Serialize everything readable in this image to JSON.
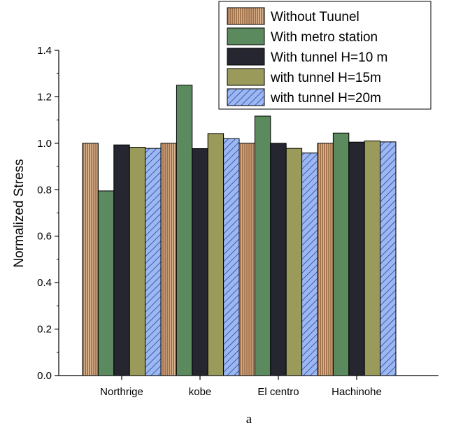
{
  "chart_data": {
    "type": "bar",
    "ylabel": "Normalized Stress",
    "xlabel": "",
    "caption": "a",
    "ylim": [
      0.0,
      1.4
    ],
    "yticks": [
      "0.0",
      "0.2",
      "0.4",
      "0.6",
      "0.8",
      "1.0",
      "1.2",
      "1.4"
    ],
    "categories": [
      "Northrige",
      "kobe",
      "El centro",
      "Hachinohe"
    ],
    "legend_position": "top-right",
    "series": [
      {
        "name": "Without Tuunel",
        "color": "#a0714b",
        "pattern": "vertical-stripes",
        "values": [
          1.0,
          1.0,
          1.0,
          1.0
        ]
      },
      {
        "name": "With metro station",
        "color": "#5b8a5f",
        "pattern": "solid",
        "values": [
          0.795,
          1.25,
          1.117,
          1.044
        ]
      },
      {
        "name": "With tunnel H=10 m",
        "color": "#262630",
        "pattern": "solid",
        "values": [
          0.993,
          0.977,
          1.0,
          1.005
        ]
      },
      {
        "name": "with tunnel H=15m",
        "color": "#9a9a5a",
        "pattern": "solid",
        "values": [
          0.983,
          1.042,
          0.978,
          1.01
        ]
      },
      {
        "name": "with tunnel H=20m",
        "color": "#9db8f0",
        "pattern": "diagonal-hatch",
        "values": [
          0.978,
          1.02,
          0.958,
          1.006
        ]
      }
    ]
  }
}
